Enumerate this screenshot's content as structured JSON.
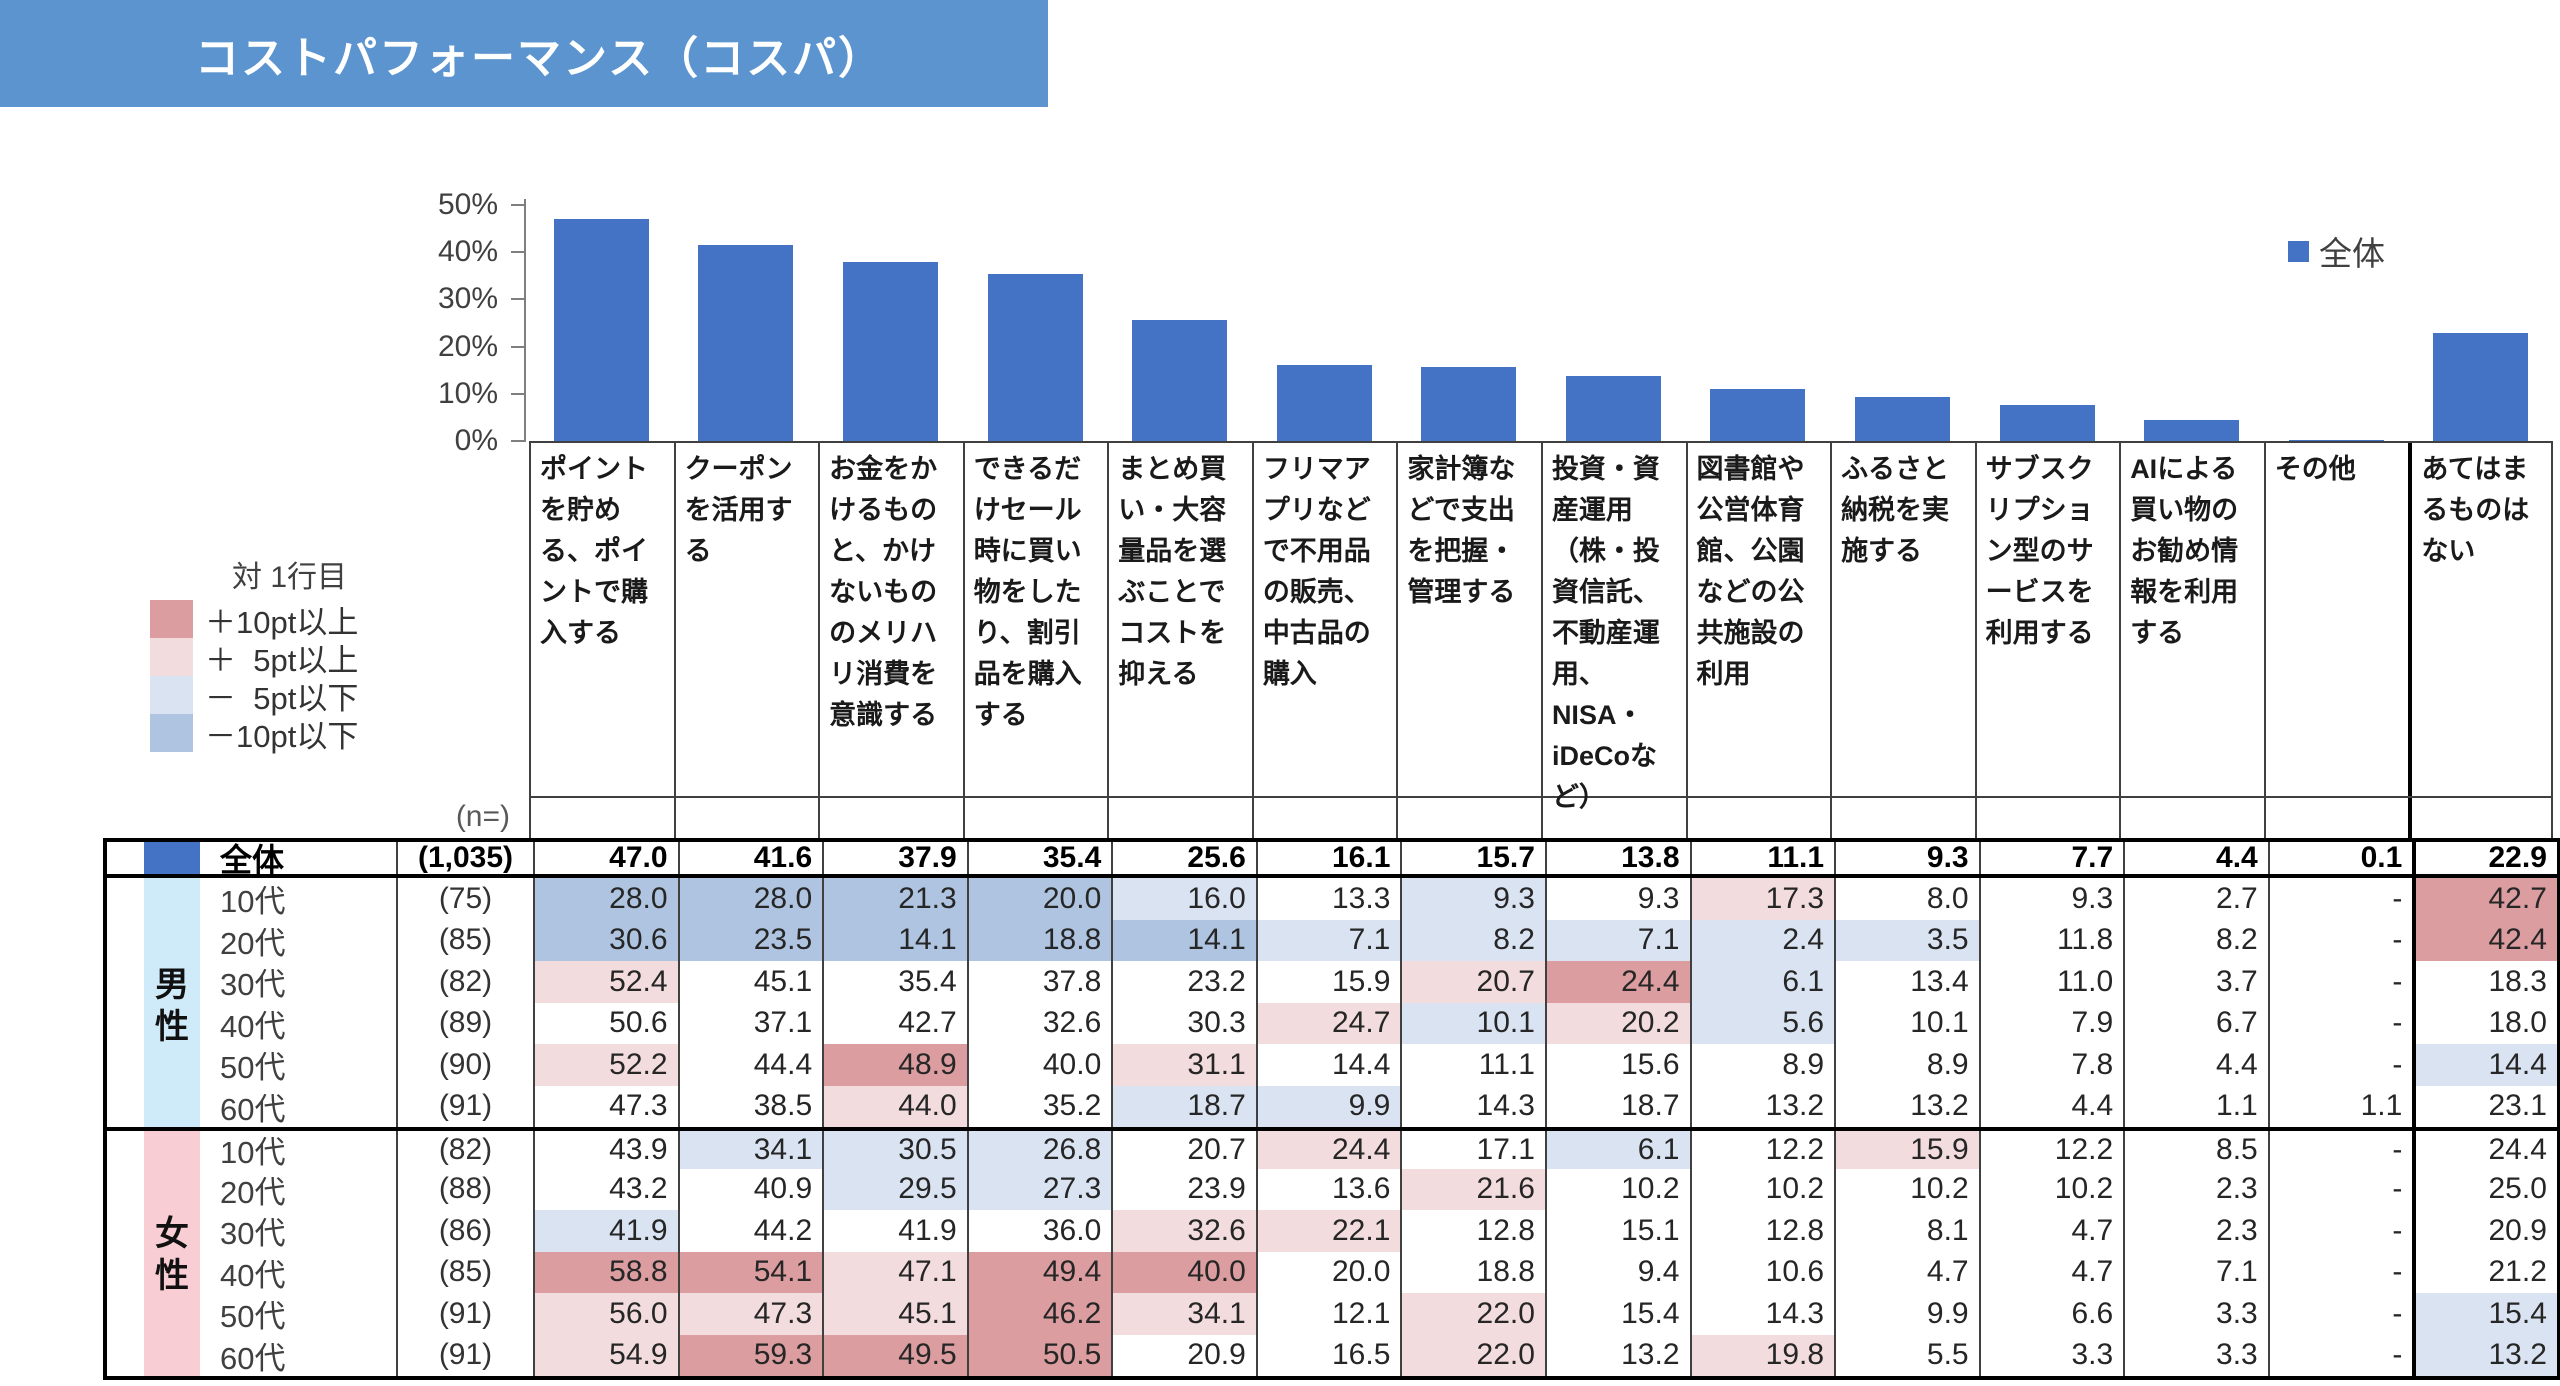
{
  "banner": {
    "title": "コストパフォーマンス（コスパ）",
    "bg_color": "#5B94CE"
  },
  "chart": {
    "legend_label": "全体",
    "bar_color": "#4472C4",
    "y_tick_labels": [
      "50%",
      "40%",
      "30%",
      "20%",
      "10%",
      "0%"
    ]
  },
  "chart_data": {
    "type": "bar",
    "title": "コストパフォーマンス（コスパ）",
    "series_name": "全体",
    "categories": [
      "ポイントを貯める、ポイントで購入する",
      "クーポンを活用する",
      "お金をかけるものと、かけないもののメリハリ消費を意識する",
      "できるだけセール時に買い物をしたり、割引品を購入する",
      "まとめ買い・大容量品を選ぶことでコストを抑える",
      "フリマアプリなどで不用品の販売、中古品の購入",
      "家計簿などで支出を把握・管理する",
      "投資・資産運用（株・投資信託、不動産運用、NISA・iDeCoなど）",
      "図書館や公営体育館、公園などの公共施設の利用",
      "ふるさと納税を実施する",
      "サブスクリプション型のサービスを利用する",
      "AIによる買い物のお勧め情報を利用する",
      "その他",
      "あてはまるものはない"
    ],
    "values": [
      47.0,
      41.6,
      37.9,
      35.4,
      25.6,
      16.1,
      15.7,
      13.8,
      11.1,
      9.3,
      7.7,
      4.4,
      0.1,
      22.9
    ],
    "ylabel": "",
    "xlabel": "",
    "ylim": [
      0,
      50
    ],
    "grid": false,
    "legend_position": "top-right"
  },
  "diff_legend": {
    "title": "対 1行目",
    "items": [
      {
        "label": "＋10pt以上",
        "key": "plus10"
      },
      {
        "label": "＋  5pt以上",
        "key": "plus5"
      },
      {
        "label": "－  5pt以下",
        "key": "minus5"
      },
      {
        "label": "－10pt以下",
        "key": "minus10"
      }
    ]
  },
  "cell_colors": {
    "plus10": "#DC9DA0",
    "plus5": "#F3DCDD",
    "minus5": "#DAE3F1",
    "minus10": "#AFC4E0",
    "male_strip": "#CFEAF8",
    "female_strip": "#F8CED4",
    "overall_swatch": "#4472C4"
  },
  "table": {
    "n_header": "(n=)",
    "dash": "-",
    "overall_row": {
      "label": "全体",
      "n": "(1,035)",
      "values": [
        47.0,
        41.6,
        37.9,
        35.4,
        25.6,
        16.1,
        15.7,
        13.8,
        11.1,
        9.3,
        7.7,
        4.4,
        0.1,
        22.9
      ]
    },
    "groups": [
      {
        "label": "男性",
        "chars": [
          "男",
          "性"
        ],
        "strip_key": "male_strip",
        "rows": [
          {
            "label": "10代",
            "n": "(75)",
            "values": [
              28.0,
              28.0,
              21.3,
              20.0,
              16.0,
              13.3,
              9.3,
              9.3,
              17.3,
              8.0,
              9.3,
              2.7,
              null,
              42.7
            ]
          },
          {
            "label": "20代",
            "n": "(85)",
            "values": [
              30.6,
              23.5,
              14.1,
              18.8,
              14.1,
              7.1,
              8.2,
              7.1,
              2.4,
              3.5,
              11.8,
              8.2,
              null,
              42.4
            ]
          },
          {
            "label": "30代",
            "n": "(82)",
            "values": [
              52.4,
              45.1,
              35.4,
              37.8,
              23.2,
              15.9,
              20.7,
              24.4,
              6.1,
              13.4,
              11.0,
              3.7,
              null,
              18.3
            ]
          },
          {
            "label": "40代",
            "n": "(89)",
            "values": [
              50.6,
              37.1,
              42.7,
              32.6,
              30.3,
              24.7,
              10.1,
              20.2,
              5.6,
              10.1,
              7.9,
              6.7,
              null,
              18.0
            ]
          },
          {
            "label": "50代",
            "n": "(90)",
            "values": [
              52.2,
              44.4,
              48.9,
              40.0,
              31.1,
              14.4,
              11.1,
              15.6,
              8.9,
              8.9,
              7.8,
              4.4,
              null,
              14.4
            ]
          },
          {
            "label": "60代",
            "n": "(91)",
            "values": [
              47.3,
              38.5,
              44.0,
              35.2,
              18.7,
              9.9,
              14.3,
              18.7,
              13.2,
              13.2,
              4.4,
              1.1,
              1.1,
              23.1
            ]
          }
        ]
      },
      {
        "label": "女性",
        "chars": [
          "女",
          "性"
        ],
        "strip_key": "female_strip",
        "rows": [
          {
            "label": "10代",
            "n": "(82)",
            "values": [
              43.9,
              34.1,
              30.5,
              26.8,
              20.7,
              24.4,
              17.1,
              6.1,
              12.2,
              15.9,
              12.2,
              8.5,
              null,
              24.4
            ]
          },
          {
            "label": "20代",
            "n": "(88)",
            "values": [
              43.2,
              40.9,
              29.5,
              27.3,
              23.9,
              13.6,
              21.6,
              10.2,
              10.2,
              10.2,
              10.2,
              2.3,
              null,
              25.0
            ]
          },
          {
            "label": "30代",
            "n": "(86)",
            "values": [
              41.9,
              44.2,
              41.9,
              36.0,
              32.6,
              22.1,
              12.8,
              15.1,
              12.8,
              8.1,
              4.7,
              2.3,
              null,
              20.9
            ]
          },
          {
            "label": "40代",
            "n": "(85)",
            "values": [
              58.8,
              54.1,
              47.1,
              49.4,
              40.0,
              20.0,
              18.8,
              9.4,
              10.6,
              4.7,
              4.7,
              7.1,
              null,
              21.2
            ]
          },
          {
            "label": "50代",
            "n": "(91)",
            "values": [
              56.0,
              47.3,
              45.1,
              46.2,
              34.1,
              12.1,
              22.0,
              15.4,
              14.3,
              9.9,
              6.6,
              3.3,
              null,
              15.4
            ]
          },
          {
            "label": "60代",
            "n": "(91)",
            "values": [
              54.9,
              59.3,
              49.5,
              50.5,
              20.9,
              16.5,
              22.0,
              13.2,
              19.8,
              5.5,
              3.3,
              3.3,
              null,
              13.2
            ]
          }
        ]
      }
    ]
  }
}
